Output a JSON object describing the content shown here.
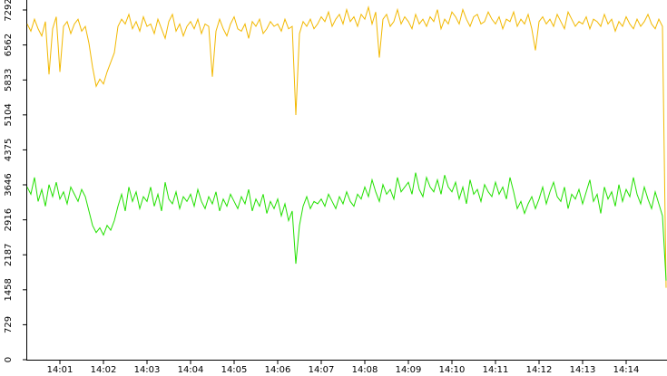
{
  "chart_data": {
    "type": "line",
    "categories": [
      null,
      null,
      null,
      null,
      null,
      null,
      null,
      null,
      null,
      "14:01",
      null,
      null,
      null,
      null,
      null,
      null,
      null,
      null,
      null,
      null,
      null,
      "14:02",
      null,
      null,
      null,
      null,
      null,
      null,
      null,
      null,
      null,
      null,
      null,
      "14:03",
      null,
      null,
      null,
      null,
      null,
      null,
      null,
      null,
      null,
      null,
      null,
      "14:04",
      null,
      null,
      null,
      null,
      null,
      null,
      null,
      null,
      null,
      null,
      null,
      "14:05",
      null,
      null,
      null,
      null,
      null,
      null,
      null,
      null,
      null,
      null,
      null,
      "14:06",
      null,
      null,
      null,
      null,
      null,
      null,
      null,
      null,
      null,
      null,
      null,
      "14:07",
      null,
      null,
      null,
      null,
      null,
      null,
      null,
      null,
      null,
      null,
      null,
      "14:08",
      null,
      null,
      null,
      null,
      null,
      null,
      null,
      null,
      null,
      null,
      null,
      "14:09",
      null,
      null,
      null,
      null,
      null,
      null,
      null,
      null,
      null,
      null,
      null,
      "14:10",
      null,
      null,
      null,
      null,
      null,
      null,
      null,
      null,
      null,
      null,
      null,
      "14:11",
      null,
      null,
      null,
      null,
      null,
      null,
      null,
      null,
      null,
      null,
      null,
      "14:12",
      null,
      null,
      null,
      null,
      null,
      null,
      null,
      null,
      null,
      null,
      null,
      "14:13",
      null,
      null,
      null,
      null,
      null,
      null,
      null,
      null,
      null,
      null,
      null,
      "14:14",
      null,
      null,
      null,
      null,
      null,
      null,
      null,
      null,
      null,
      null,
      null
    ],
    "series": [
      {
        "color": "#f2b800",
        "values": [
          7000,
          6850,
          7100,
          6900,
          6750,
          7050,
          5950,
          6900,
          7150,
          6000,
          6950,
          7050,
          6800,
          7000,
          7100,
          6850,
          6950,
          6600,
          6100,
          5700,
          5850,
          5750,
          6000,
          6200,
          6400,
          6950,
          7100,
          7000,
          7200,
          6900,
          7050,
          6850,
          7150,
          6950,
          7000,
          6800,
          7100,
          6900,
          6700,
          7050,
          7200,
          6850,
          7000,
          6750,
          6950,
          7050,
          6900,
          7100,
          6800,
          7000,
          6950,
          5900,
          6850,
          7100,
          6900,
          6750,
          7000,
          7150,
          6900,
          6850,
          7000,
          6700,
          7050,
          6950,
          7100,
          6800,
          6900,
          7050,
          6950,
          7000,
          6850,
          7100,
          6900,
          6950,
          5100,
          6800,
          7050,
          6950,
          7100,
          6900,
          7000,
          7150,
          7050,
          7250,
          6950,
          7100,
          7200,
          7000,
          7300,
          7050,
          7150,
          6950,
          7200,
          7100,
          7350,
          7000,
          7250,
          6300,
          7100,
          7200,
          6950,
          7050,
          7300,
          7000,
          7150,
          7050,
          6900,
          7200,
          7000,
          7100,
          6950,
          7150,
          7050,
          7300,
          6900,
          7100,
          7000,
          7250,
          7150,
          7000,
          7300,
          7100,
          6950,
          7150,
          7200,
          7000,
          7050,
          7250,
          7100,
          7000,
          7150,
          6900,
          7100,
          7050,
          7250,
          6950,
          7100,
          7000,
          7200,
          6900,
          6450,
          7050,
          7150,
          7000,
          7100,
          6950,
          7200,
          7050,
          6900,
          7250,
          7100,
          6950,
          7050,
          7000,
          7150,
          6900,
          7100,
          7050,
          6950,
          7200,
          7000,
          7100,
          6850,
          7050,
          6950,
          7150,
          7000,
          6900,
          7100,
          6950,
          7050,
          7200,
          7000,
          6900,
          7100,
          6950,
          1500
        ]
      },
      {
        "color": "#22e000",
        "values": [
          3600,
          3450,
          3800,
          3300,
          3550,
          3200,
          3650,
          3400,
          3700,
          3350,
          3500,
          3250,
          3600,
          3450,
          3300,
          3550,
          3400,
          3100,
          2800,
          2650,
          2750,
          2600,
          2800,
          2700,
          2900,
          3200,
          3450,
          3100,
          3600,
          3300,
          3500,
          3150,
          3400,
          3300,
          3600,
          3200,
          3450,
          3100,
          3700,
          3350,
          3250,
          3500,
          3150,
          3400,
          3300,
          3450,
          3200,
          3550,
          3300,
          3150,
          3400,
          3250,
          3500,
          3100,
          3350,
          3200,
          3450,
          3300,
          3150,
          3400,
          3250,
          3550,
          3100,
          3350,
          3200,
          3450,
          3050,
          3300,
          3150,
          3350,
          3000,
          3250,
          2900,
          3100,
          2000,
          2800,
          3200,
          3400,
          3150,
          3300,
          3250,
          3350,
          3200,
          3450,
          3300,
          3150,
          3400,
          3250,
          3500,
          3300,
          3200,
          3450,
          3350,
          3600,
          3400,
          3750,
          3500,
          3300,
          3650,
          3450,
          3550,
          3350,
          3800,
          3500,
          3600,
          3700,
          3450,
          3900,
          3550,
          3400,
          3800,
          3600,
          3500,
          3750,
          3450,
          3850,
          3600,
          3500,
          3700,
          3350,
          3600,
          3250,
          3750,
          3450,
          3550,
          3300,
          3650,
          3500,
          3400,
          3700,
          3450,
          3600,
          3350,
          3800,
          3500,
          3150,
          3300,
          3050,
          3250,
          3400,
          3150,
          3350,
          3600,
          3250,
          3500,
          3700,
          3400,
          3300,
          3600,
          3150,
          3450,
          3350,
          3550,
          3250,
          3500,
          3750,
          3300,
          3450,
          3050,
          3600,
          3350,
          3500,
          3200,
          3650,
          3300,
          3550,
          3400,
          3800,
          3450,
          3250,
          3600,
          3350,
          3150,
          3500,
          3250,
          3000,
          1650
        ]
      }
    ],
    "ylim": [
      0,
      7500
    ],
    "yticks": [
      0,
      729,
      1458,
      2187,
      2916,
      3646,
      4375,
      5104,
      5833,
      6562,
      7292
    ]
  }
}
